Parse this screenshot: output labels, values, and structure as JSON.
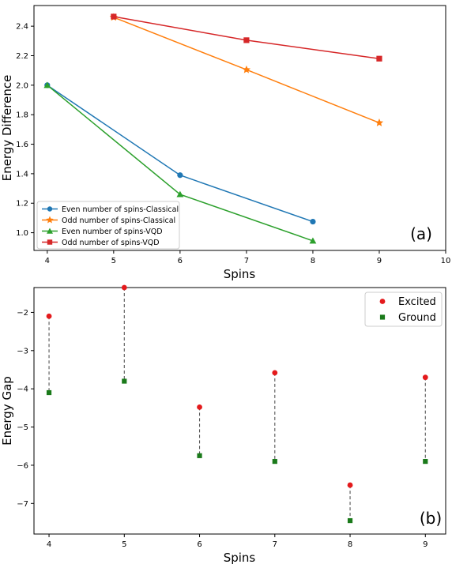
{
  "colors": {
    "even_classical": "#1f77b4",
    "odd_classical": "#ff7f0e",
    "even_vqd": "#2ca02c",
    "odd_vqd": "#d62728",
    "excited": "#e41a1c",
    "ground": "#1a7a1a",
    "connector": "#555555"
  },
  "chart_data": [
    {
      "type": "line",
      "panel_label": "(a)",
      "xlabel": "Spins",
      "ylabel": "Energy Difference",
      "xlim": [
        3.8,
        10
      ],
      "ylim": [
        0.88,
        2.54
      ],
      "xticks": [
        4,
        5,
        6,
        7,
        8,
        9,
        10
      ],
      "yticks": [
        1.0,
        1.2,
        1.4,
        1.6,
        1.8,
        2.0,
        2.2,
        2.4
      ],
      "legend_position": "lower-left",
      "series": [
        {
          "name": "Even number of spins-Classical",
          "marker": "circle",
          "color_key": "even_classical",
          "x": [
            4,
            6,
            8
          ],
          "y": [
            2.0,
            1.39,
            1.075
          ]
        },
        {
          "name": "Odd number of spins-Classical",
          "marker": "star",
          "color_key": "odd_classical",
          "x": [
            5,
            7,
            9
          ],
          "y": [
            2.46,
            2.105,
            1.745
          ]
        },
        {
          "name": "Even number of spins-VQD",
          "marker": "triangle",
          "color_key": "even_vqd",
          "x": [
            4,
            6,
            8
          ],
          "y": [
            2.0,
            1.26,
            0.945
          ]
        },
        {
          "name": "Odd number of spins-VQD",
          "marker": "square",
          "color_key": "odd_vqd",
          "x": [
            5,
            7,
            9
          ],
          "y": [
            2.465,
            2.305,
            2.18
          ]
        }
      ]
    },
    {
      "type": "scatter",
      "panel_label": "(b)",
      "xlabel": "Spins",
      "ylabel": "Energy Gap",
      "xlim": [
        3.8,
        9.27
      ],
      "ylim": [
        -7.8,
        -1.35
      ],
      "xticks": [
        4,
        5,
        6,
        7,
        8,
        9
      ],
      "yticks": [
        -2,
        -3,
        -4,
        -5,
        -6,
        -7
      ],
      "tick_labels": {
        "-2": "−2",
        "-3": "−3",
        "-4": "−4",
        "-5": "−5",
        "-6": "−6",
        "-7": "−7"
      },
      "legend_position": "top-right",
      "series": [
        {
          "name": "Excited",
          "marker": "circle",
          "color_key": "excited",
          "x": [
            4,
            5,
            6,
            7,
            8,
            9
          ],
          "y": [
            -2.1,
            -1.35,
            -4.48,
            -3.58,
            -6.52,
            -3.7
          ]
        },
        {
          "name": "Ground",
          "marker": "square",
          "color_key": "ground",
          "x": [
            4,
            5,
            6,
            7,
            8,
            9
          ],
          "y": [
            -4.1,
            -3.8,
            -5.75,
            -5.9,
            -7.45,
            -5.9
          ]
        }
      ]
    }
  ]
}
